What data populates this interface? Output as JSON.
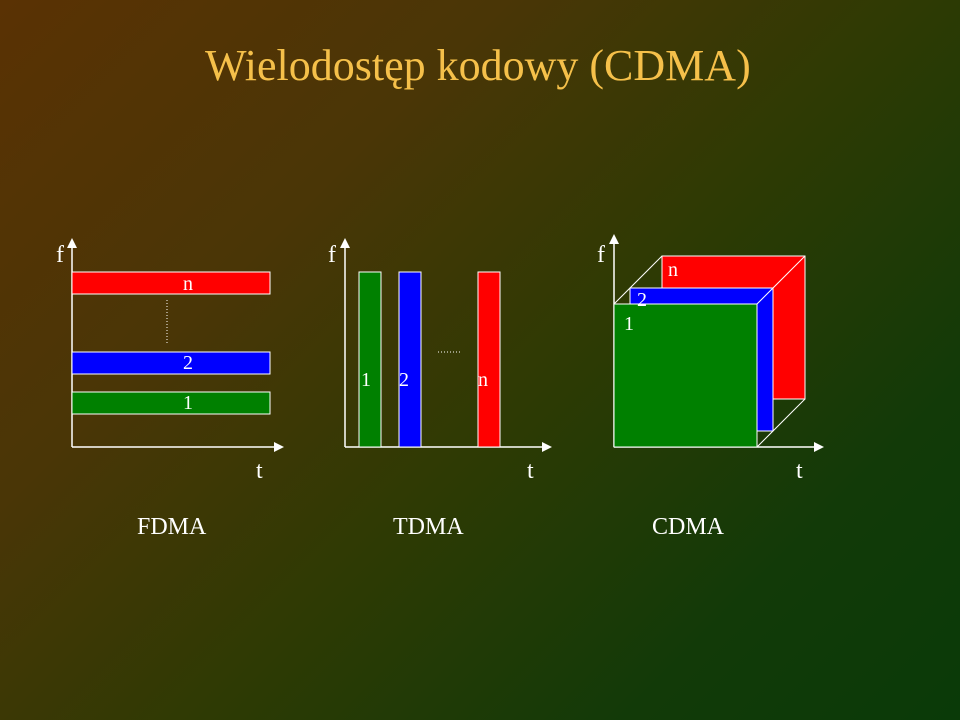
{
  "slide": {
    "title": "Wielodostęp kodowy (CDMA)"
  },
  "colors": {
    "title": "#f5c04a",
    "red": "#ff0000",
    "blue": "#0000ff",
    "green": "#008000",
    "axis": "#ffffff"
  },
  "panels": [
    {
      "name": "FDMA",
      "f_label": "f",
      "t_label": "t",
      "labels": [
        "n",
        "2",
        "1"
      ]
    },
    {
      "name": "TDMA",
      "f_label": "f",
      "t_label": "t",
      "labels": [
        "1",
        "2",
        "n"
      ]
    },
    {
      "name": "CDMA",
      "f_label": "f",
      "t_label": "t",
      "labels": [
        "1",
        "2",
        "n"
      ]
    }
  ]
}
